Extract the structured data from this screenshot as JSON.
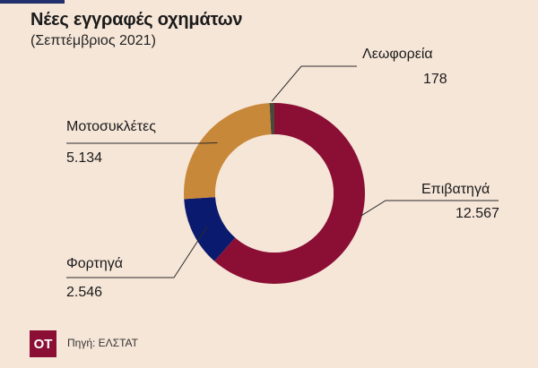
{
  "header": {
    "title": "Νέες εγγραφές οχημάτων",
    "subtitle": "(Σεπτέμβριος 2021)"
  },
  "chart_data": {
    "type": "pie",
    "donut": true,
    "title": "Νέες εγγραφές οχημάτων",
    "subtitle": "(Σεπτέμβριος 2021)",
    "slices": [
      {
        "label": "Λεωφορεία",
        "value": 178,
        "value_text": "178",
        "color": "#4a4a3a"
      },
      {
        "label": "Επιβατηγά",
        "value": 12567,
        "value_text": "12.567",
        "color": "#8b0f35"
      },
      {
        "label": "Φορτηγά",
        "value": 2546,
        "value_text": "2.546",
        "color": "#0a1a6e"
      },
      {
        "label": "Μοτοσυκλέτες",
        "value": 5134,
        "value_text": "5.134",
        "color": "#c8883a"
      }
    ]
  },
  "footer": {
    "logo_text": "ΟΤ",
    "source": "Πηγή: ΕΛΣΤΑΤ"
  }
}
